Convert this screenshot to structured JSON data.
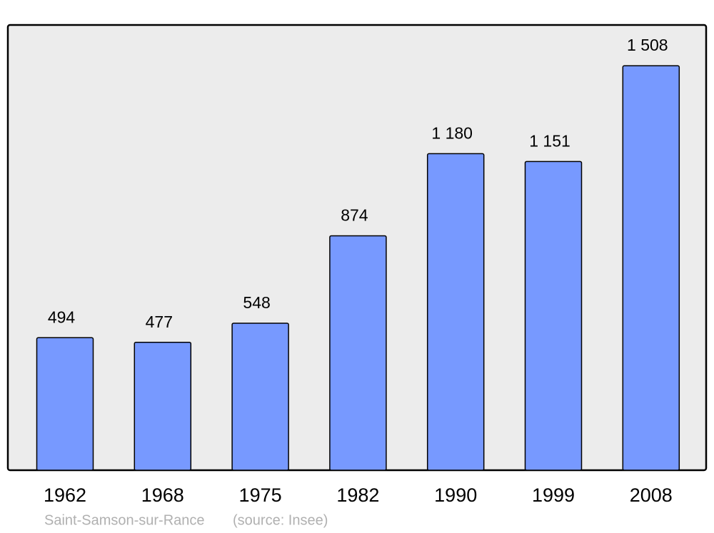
{
  "chart_data": {
    "type": "bar",
    "categories": [
      "1962",
      "1968",
      "1975",
      "1982",
      "1990",
      "1999",
      "2008"
    ],
    "values": [
      494,
      477,
      548,
      874,
      1180,
      1151,
      1508
    ],
    "value_labels": [
      "494",
      "477",
      "548",
      "874",
      "1 180",
      "1 151",
      "1 508"
    ],
    "color": "#7799ff",
    "ylim": [
      0,
      1660
    ],
    "caption": "Saint-Samson-sur-Rance",
    "source": "(source: Insee)"
  }
}
